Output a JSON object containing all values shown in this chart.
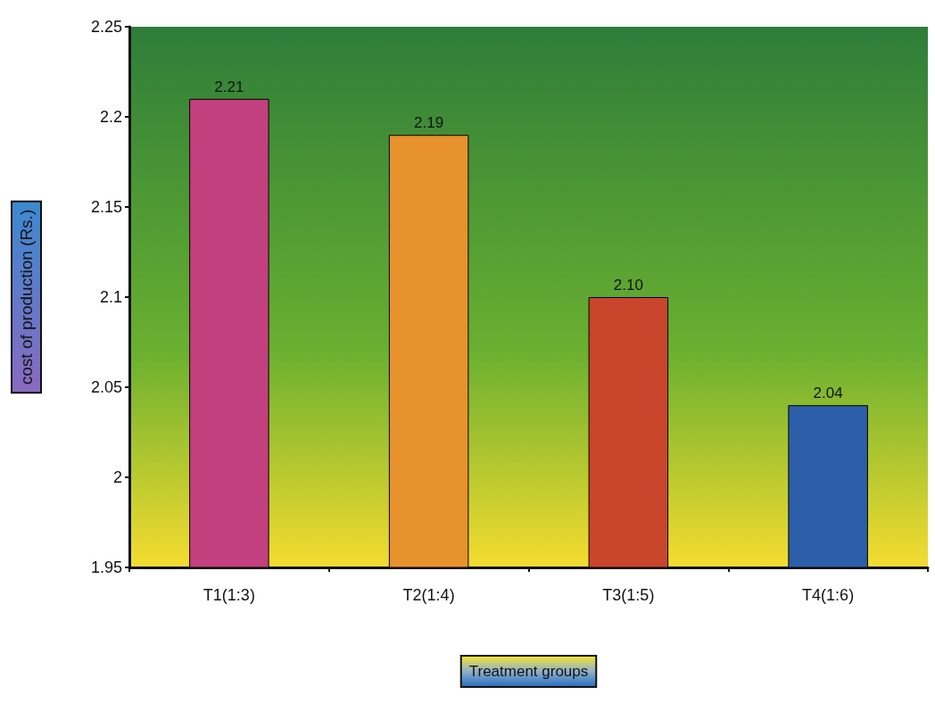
{
  "chart_data": {
    "type": "bar",
    "xlabel": "Treatment groups",
    "ylabel": "cost of production (Rs.)",
    "categories": [
      "T1(1:3)",
      "T2(1:4)",
      "T3(1:5)",
      "T4(1:6)"
    ],
    "values": [
      2.21,
      2.19,
      2.1,
      2.04
    ],
    "colors": [
      "#c2407e",
      "#e8922e",
      "#c9452c",
      "#2d5ea8"
    ],
    "value_labels": [
      "2.21",
      "2.19",
      "2.10",
      "2.04"
    ],
    "ylim": [
      1.95,
      2.25
    ],
    "yticks": [
      1.95,
      2,
      2.05,
      2.1,
      2.15,
      2.2,
      2.25
    ],
    "grid": false
  }
}
